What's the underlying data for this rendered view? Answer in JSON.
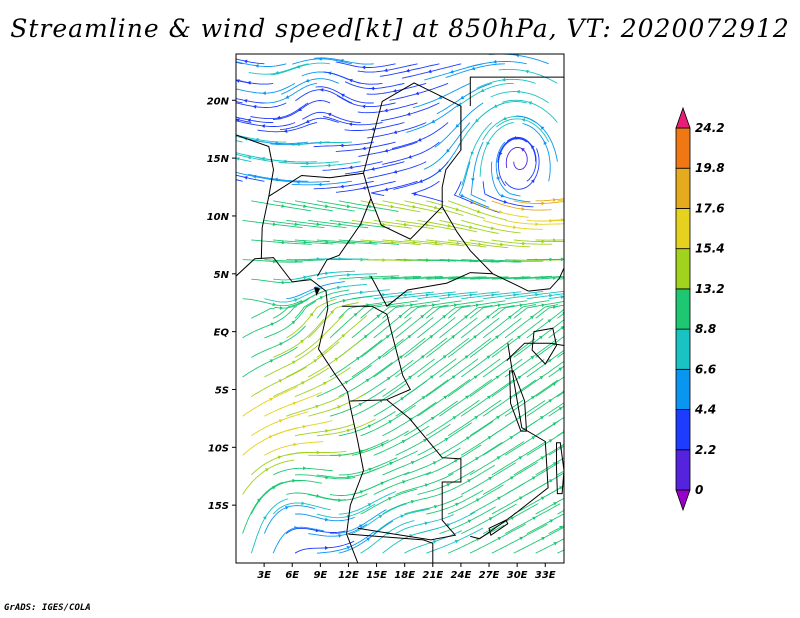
{
  "title": "Streamline & wind speed[kt] at 850hPa, VT: 2020072912",
  "footer": "GrADS: IGES/COLA",
  "map": {
    "lon_range": [
      0,
      35
    ],
    "lat_range": [
      -20,
      24
    ],
    "lon_ticks": [
      {
        "value": 3,
        "label": "3E"
      },
      {
        "value": 6,
        "label": "6E"
      },
      {
        "value": 9,
        "label": "9E"
      },
      {
        "value": 12,
        "label": "12E"
      },
      {
        "value": 15,
        "label": "15E"
      },
      {
        "value": 18,
        "label": "18E"
      },
      {
        "value": 21,
        "label": "21E"
      },
      {
        "value": 24,
        "label": "24E"
      },
      {
        "value": 27,
        "label": "27E"
      },
      {
        "value": 30,
        "label": "30E"
      },
      {
        "value": 33,
        "label": "33E"
      }
    ],
    "lat_ticks": [
      {
        "value": 20,
        "label": "20N"
      },
      {
        "value": 15,
        "label": "15N"
      },
      {
        "value": 10,
        "label": "10N"
      },
      {
        "value": 5,
        "label": "5N"
      },
      {
        "value": 0,
        "label": "EQ"
      },
      {
        "value": -5,
        "label": "5S"
      },
      {
        "value": -10,
        "label": "10S"
      },
      {
        "value": -15,
        "label": "15S"
      }
    ],
    "features": [
      "streamlines",
      "wind-speed-colors",
      "country-boundaries",
      "coastlines"
    ]
  },
  "colorbar": {
    "labels": [
      "0",
      "2.2",
      "4.4",
      "6.6",
      "8.8",
      "13.2",
      "15.4",
      "17.6",
      "19.8",
      "24.2"
    ],
    "colors": [
      "#9900cc",
      "#5522dd",
      "#1e3cff",
      "#0a96f0",
      "#19c3c3",
      "#1ec873",
      "#a0d21e",
      "#e6d21e",
      "#e6aa1e",
      "#f07814",
      "#e61e78"
    ]
  }
}
